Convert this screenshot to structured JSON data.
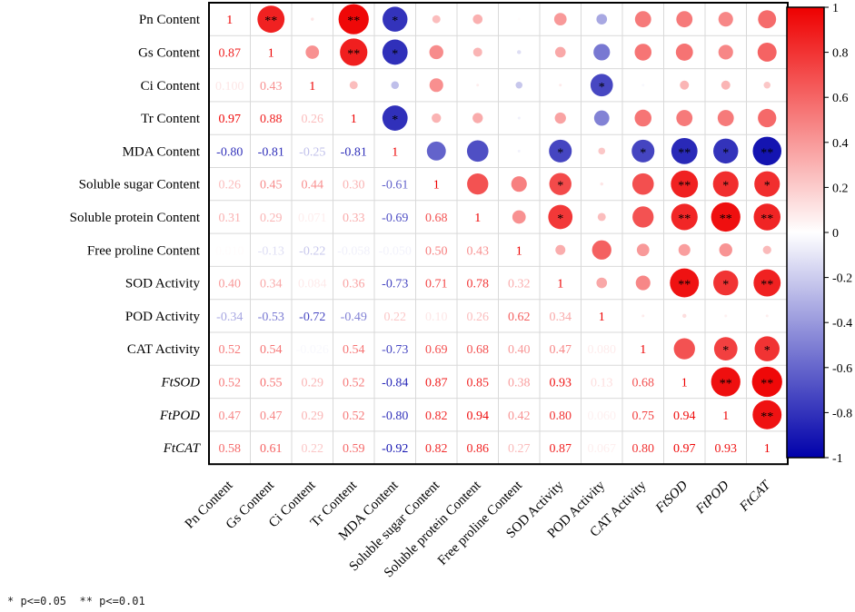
{
  "chart_data": {
    "type": "heatmap",
    "subtype": "correlation-matrix",
    "variables": [
      {
        "name": "Pn Content",
        "italic": false
      },
      {
        "name": "Gs Content",
        "italic": false
      },
      {
        "name": "Ci Content",
        "italic": false
      },
      {
        "name": "Tr Content",
        "italic": false
      },
      {
        "name": "MDA Content",
        "italic": false
      },
      {
        "name": "Soluble sugar Content",
        "italic": false
      },
      {
        "name": "Soluble protein Content",
        "italic": false
      },
      {
        "name": "Free proline Content",
        "italic": false
      },
      {
        "name": "SOD Activity",
        "italic": false
      },
      {
        "name": "POD Activity",
        "italic": false
      },
      {
        "name": "CAT Activity",
        "italic": false
      },
      {
        "name": "FtSOD",
        "italic": true
      },
      {
        "name": "FtPOD",
        "italic": true
      },
      {
        "name": "FtCAT",
        "italic": true
      }
    ],
    "lower_labels": [
      [
        "1"
      ],
      [
        "0.87",
        "1"
      ],
      [
        "0.100",
        "0.43",
        "1"
      ],
      [
        "0.97",
        "0.88",
        "0.26",
        "1"
      ],
      [
        "-0.80",
        "-0.81",
        "-0.25",
        "-0.81",
        "1"
      ],
      [
        "0.26",
        "0.45",
        "0.44",
        "0.30",
        "-0.61",
        "1"
      ],
      [
        "0.31",
        "0.29",
        "0.071",
        "0.33",
        "-0.69",
        "0.68",
        "1"
      ],
      [
        "0.010",
        "-0.13",
        "-0.22",
        "-0.058",
        "-0.050",
        "0.50",
        "0.43",
        "1"
      ],
      [
        "0.40",
        "0.34",
        "0.084",
        "0.36",
        "-0.73",
        "0.71",
        "0.78",
        "0.32",
        "1"
      ],
      [
        "-0.34",
        "-0.53",
        "-0.72",
        "-0.49",
        "0.22",
        "0.10",
        "0.26",
        "0.62",
        "0.34",
        "1"
      ],
      [
        "0.52",
        "0.54",
        "-0.026",
        "0.54",
        "-0.73",
        "0.69",
        "0.68",
        "0.40",
        "0.47",
        "0.080",
        "1"
      ],
      [
        "0.52",
        "0.55",
        "0.29",
        "0.52",
        "-0.84",
        "0.87",
        "0.85",
        "0.38",
        "0.93",
        "0.13",
        "0.68",
        "1"
      ],
      [
        "0.47",
        "0.47",
        "0.29",
        "0.52",
        "-0.80",
        "0.82",
        "0.94",
        "0.42",
        "0.80",
        "0.060",
        "0.75",
        "0.94",
        "1"
      ],
      [
        "0.58",
        "0.61",
        "0.22",
        "0.59",
        "-0.92",
        "0.82",
        "0.86",
        "0.27",
        "0.87",
        "0.067",
        "0.80",
        "0.97",
        "0.93",
        "1"
      ]
    ],
    "significance": [
      {
        "row": 0,
        "col": 1,
        "mark": "**"
      },
      {
        "row": 0,
        "col": 3,
        "mark": "**"
      },
      {
        "row": 0,
        "col": 4,
        "mark": "*"
      },
      {
        "row": 1,
        "col": 3,
        "mark": "**"
      },
      {
        "row": 1,
        "col": 4,
        "mark": "*"
      },
      {
        "row": 2,
        "col": 9,
        "mark": "*"
      },
      {
        "row": 3,
        "col": 4,
        "mark": "*"
      },
      {
        "row": 4,
        "col": 8,
        "mark": "*"
      },
      {
        "row": 4,
        "col": 10,
        "mark": "*"
      },
      {
        "row": 4,
        "col": 11,
        "mark": "**"
      },
      {
        "row": 4,
        "col": 12,
        "mark": "*"
      },
      {
        "row": 4,
        "col": 13,
        "mark": "**"
      },
      {
        "row": 5,
        "col": 8,
        "mark": "*"
      },
      {
        "row": 5,
        "col": 11,
        "mark": "**"
      },
      {
        "row": 5,
        "col": 12,
        "mark": "*"
      },
      {
        "row": 5,
        "col": 13,
        "mark": "*"
      },
      {
        "row": 6,
        "col": 8,
        "mark": "*"
      },
      {
        "row": 6,
        "col": 11,
        "mark": "**"
      },
      {
        "row": 6,
        "col": 12,
        "mark": "**"
      },
      {
        "row": 6,
        "col": 13,
        "mark": "**"
      },
      {
        "row": 8,
        "col": 11,
        "mark": "**"
      },
      {
        "row": 8,
        "col": 12,
        "mark": "*"
      },
      {
        "row": 8,
        "col": 13,
        "mark": "**"
      },
      {
        "row": 10,
        "col": 12,
        "mark": "*"
      },
      {
        "row": 10,
        "col": 13,
        "mark": "*"
      },
      {
        "row": 11,
        "col": 12,
        "mark": "**"
      },
      {
        "row": 11,
        "col": 13,
        "mark": "**"
      },
      {
        "row": 12,
        "col": 13,
        "mark": "**"
      }
    ],
    "upper_display": "circles sized and colored by |r|",
    "lower_display": "coefficient text colored by r",
    "colorbar": {
      "range": [
        -1,
        1
      ],
      "ticks": [
        "1",
        "0.8",
        "0.6",
        "0.4",
        "0.2",
        "0",
        "-0.2",
        "-0.4",
        "-0.6",
        "-0.8",
        "-1"
      ],
      "colors": {
        "negative": "#0000aa",
        "zero": "#ffffff",
        "positive": "#ee0000"
      }
    }
  },
  "footnote": "* p<=0.05  ** p<=0.01"
}
